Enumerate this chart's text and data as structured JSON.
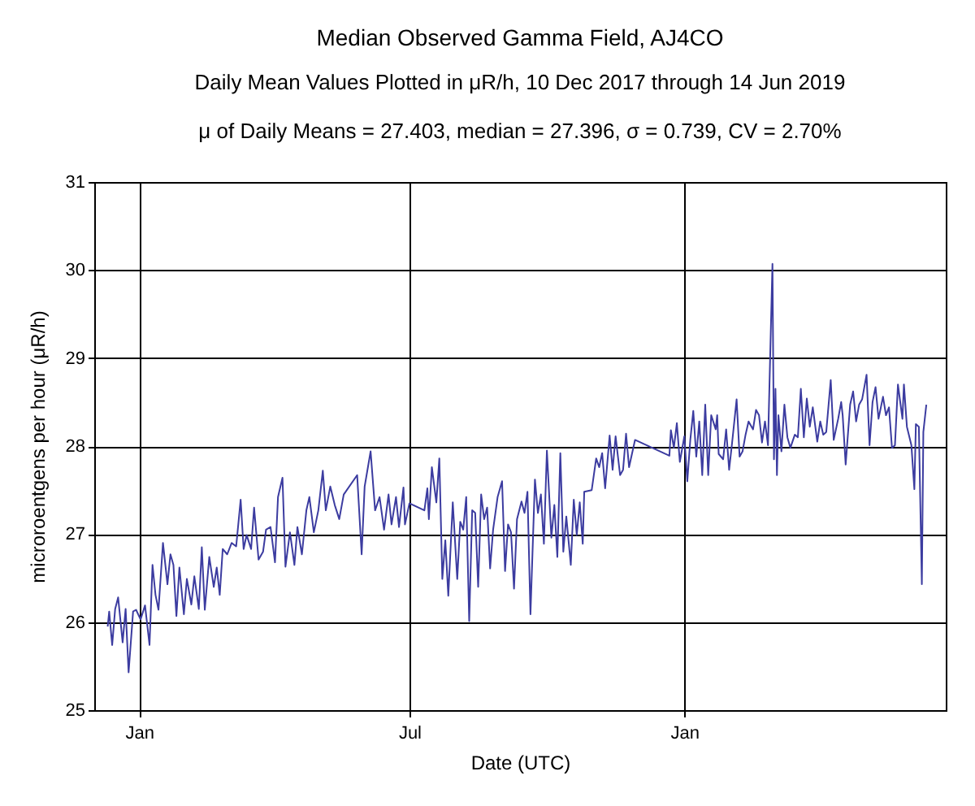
{
  "chart_data": {
    "type": "line",
    "title": "Median Observed Gamma Field, AJ4CO",
    "subtitle": "Daily Mean Values Plotted in μR/h, 10 Dec 2017 through 14 Jun 2019",
    "annotations": [
      "μ of Daily Means = 27.403,   median = 27.396,   σ = 0.739,   CV = 2.70%"
    ],
    "xlabel": "Date (UTC)",
    "ylabel": "microroentgens per hour (μR/h)",
    "x": [
      "2017-12-11",
      "2017-12-12",
      "2017-12-14",
      "2017-12-16",
      "2017-12-18",
      "2017-12-21",
      "2017-12-23",
      "2017-12-25",
      "2017-12-28",
      "2017-12-30",
      "2018-01-02",
      "2018-01-05",
      "2018-01-08",
      "2018-01-10",
      "2018-01-12",
      "2018-01-14",
      "2018-01-17",
      "2018-01-20",
      "2018-01-22",
      "2018-01-24",
      "2018-01-26",
      "2018-01-28",
      "2018-01-31",
      "2018-02-02",
      "2018-02-05",
      "2018-02-07",
      "2018-02-10",
      "2018-02-12",
      "2018-02-14",
      "2018-02-17",
      "2018-02-20",
      "2018-02-22",
      "2018-02-24",
      "2018-02-26",
      "2018-03-01",
      "2018-03-04",
      "2018-03-07",
      "2018-03-10",
      "2018-03-12",
      "2018-03-14",
      "2018-03-17",
      "2018-03-19",
      "2018-03-22",
      "2018-03-25",
      "2018-03-27",
      "2018-03-30",
      "2018-04-02",
      "2018-04-04",
      "2018-04-07",
      "2018-04-09",
      "2018-04-12",
      "2018-04-15",
      "2018-04-17",
      "2018-04-20",
      "2018-04-23",
      "2018-04-25",
      "2018-04-28",
      "2018-05-01",
      "2018-05-04",
      "2018-05-06",
      "2018-05-09",
      "2018-05-12",
      "2018-05-15",
      "2018-05-18",
      "2018-05-27",
      "2018-05-30",
      "2018-06-01",
      "2018-06-05",
      "2018-06-08",
      "2018-06-11",
      "2018-06-14",
      "2018-06-17",
      "2018-06-19",
      "2018-06-22",
      "2018-06-24",
      "2018-06-27",
      "2018-06-28",
      "2018-07-01",
      "2018-07-11",
      "2018-07-13",
      "2018-07-14",
      "2018-07-16",
      "2018-07-19",
      "2018-07-21",
      "2018-07-23",
      "2018-07-25",
      "2018-07-27",
      "2018-07-30",
      "2018-08-02",
      "2018-08-04",
      "2018-08-06",
      "2018-08-08",
      "2018-08-10",
      "2018-08-12",
      "2018-08-14",
      "2018-08-16",
      "2018-08-18",
      "2018-08-20",
      "2018-08-22",
      "2018-08-24",
      "2018-08-26",
      "2018-08-29",
      "2018-09-01",
      "2018-09-03",
      "2018-09-05",
      "2018-09-07",
      "2018-09-09",
      "2018-09-11",
      "2018-09-14",
      "2018-09-16",
      "2018-09-18",
      "2018-09-20",
      "2018-09-23",
      "2018-09-25",
      "2018-09-27",
      "2018-09-29",
      "2018-10-01",
      "2018-10-04",
      "2018-10-06",
      "2018-10-08",
      "2018-10-10",
      "2018-10-12",
      "2018-10-14",
      "2018-10-17",
      "2018-10-19",
      "2018-10-21",
      "2018-10-23",
      "2018-10-25",
      "2018-10-26",
      "2018-10-31",
      "2018-11-03",
      "2018-11-05",
      "2018-11-07",
      "2018-11-09",
      "2018-11-12",
      "2018-11-14",
      "2018-11-16",
      "2018-11-19",
      "2018-11-21",
      "2018-11-23",
      "2018-11-25",
      "2018-11-29",
      "2018-12-22",
      "2018-12-23",
      "2018-12-25",
      "2018-12-27",
      "2018-12-29",
      "2019-01-01",
      "2019-01-03",
      "2019-01-05",
      "2019-01-07",
      "2019-01-09",
      "2019-01-11",
      "2019-01-13",
      "2019-01-15",
      "2019-01-17",
      "2019-01-19",
      "2019-01-22",
      "2019-01-23",
      "2019-01-24",
      "2019-01-27",
      "2019-01-29",
      "2019-01-31",
      "2019-02-02",
      "2019-02-05",
      "2019-02-07",
      "2019-02-09",
      "2019-02-11",
      "2019-02-13",
      "2019-02-16",
      "2019-02-18",
      "2019-02-20",
      "2019-02-22",
      "2019-02-24",
      "2019-02-26",
      "2019-03-01",
      "2019-03-02",
      "2019-03-03",
      "2019-03-04",
      "2019-03-05",
      "2019-03-07",
      "2019-03-09",
      "2019-03-11",
      "2019-03-13",
      "2019-03-16",
      "2019-03-18",
      "2019-03-20",
      "2019-03-22",
      "2019-03-24",
      "2019-03-26",
      "2019-03-28",
      "2019-03-31",
      "2019-04-02",
      "2019-04-04",
      "2019-04-06",
      "2019-04-09",
      "2019-04-11",
      "2019-04-14",
      "2019-04-16",
      "2019-04-17",
      "2019-04-19",
      "2019-04-22",
      "2019-04-24",
      "2019-04-26",
      "2019-04-28",
      "2019-04-30",
      "2019-05-03",
      "2019-05-05",
      "2019-05-07",
      "2019-05-09",
      "2019-05-11",
      "2019-05-14",
      "2019-05-16",
      "2019-05-18",
      "2019-05-20",
      "2019-05-22",
      "2019-05-24",
      "2019-05-27",
      "2019-05-28",
      "2019-05-30",
      "2019-06-02",
      "2019-06-04",
      "2019-06-05",
      "2019-06-07",
      "2019-06-09",
      "2019-06-10",
      "2019-06-12"
    ],
    "series": [
      {
        "color": "#3c3ca0",
        "values": [
          25.95,
          26.12,
          25.74,
          26.15,
          26.28,
          25.77,
          26.15,
          25.43,
          26.12,
          26.14,
          26.03,
          26.19,
          25.74,
          26.65,
          26.31,
          26.14,
          26.9,
          26.43,
          26.77,
          26.65,
          26.07,
          26.62,
          26.09,
          26.49,
          26.2,
          26.52,
          26.15,
          26.85,
          26.14,
          26.74,
          26.4,
          26.62,
          26.31,
          26.83,
          26.77,
          26.9,
          26.86,
          27.39,
          26.83,
          26.99,
          26.83,
          27.3,
          26.71,
          26.8,
          27.05,
          27.08,
          26.68,
          27.42,
          27.64,
          26.63,
          27.02,
          26.65,
          27.08,
          26.77,
          27.27,
          27.42,
          27.02,
          27.27,
          27.72,
          27.27,
          27.54,
          27.33,
          27.17,
          27.45,
          27.67,
          26.77,
          27.54,
          27.94,
          27.27,
          27.42,
          27.05,
          27.45,
          27.11,
          27.42,
          27.08,
          27.53,
          27.11,
          27.35,
          27.27,
          27.52,
          27.17,
          27.76,
          27.36,
          27.86,
          26.49,
          26.93,
          26.3,
          27.36,
          26.49,
          27.14,
          27.05,
          27.42,
          26.01,
          27.27,
          27.24,
          26.4,
          27.45,
          27.17,
          27.3,
          26.61,
          27.05,
          27.42,
          27.6,
          26.58,
          27.11,
          27.02,
          26.38,
          27.17,
          27.37,
          27.24,
          27.48,
          26.09,
          27.62,
          27.24,
          27.45,
          26.89,
          27.95,
          26.96,
          27.33,
          26.74,
          27.92,
          26.8,
          27.2,
          26.65,
          27.39,
          26.99,
          27.36,
          26.89,
          27.48,
          27.5,
          27.86,
          27.76,
          27.92,
          27.52,
          28.12,
          27.73,
          28.11,
          27.67,
          27.73,
          28.14,
          27.76,
          28.07,
          27.89,
          28.18,
          27.98,
          28.26,
          27.82,
          28.11,
          27.6,
          28.07,
          28.4,
          27.88,
          28.28,
          27.67,
          28.47,
          27.67,
          28.35,
          28.19,
          28.35,
          27.91,
          27.85,
          28.19,
          27.73,
          28.04,
          28.53,
          27.88,
          27.94,
          28.13,
          28.28,
          28.19,
          28.41,
          28.35,
          28.04,
          28.28,
          28.01,
          30.07,
          27.85,
          28.65,
          27.67,
          28.35,
          27.94,
          28.47,
          28.1,
          27.98,
          28.13,
          28.1,
          28.65,
          28.1,
          28.54,
          28.22,
          28.44,
          28.05,
          28.28,
          28.13,
          28.16,
          28.75,
          28.07,
          28.31,
          28.5,
          28.35,
          27.79,
          28.47,
          28.62,
          28.28,
          28.47,
          28.53,
          28.81,
          28.01,
          28.5,
          28.67,
          28.31,
          28.56,
          28.35,
          28.44,
          27.98,
          28.01,
          28.7,
          28.31,
          28.7,
          28.22,
          28.01,
          27.51,
          28.25,
          28.22,
          26.43,
          28.16,
          28.47
        ]
      }
    ],
    "xlim": [
      "2017-12-02",
      "2019-06-25"
    ],
    "xticks": [
      {
        "value": "2018-01-01",
        "label": "Jan"
      },
      {
        "value": "2018-07-01",
        "label": "Jul"
      },
      {
        "value": "2019-01-01",
        "label": "Jan"
      }
    ],
    "ylim": [
      25,
      31
    ],
    "yticks": [
      25,
      26,
      27,
      28,
      29,
      30,
      31
    ],
    "grid": true,
    "line_style": "solid",
    "marker": "none"
  }
}
